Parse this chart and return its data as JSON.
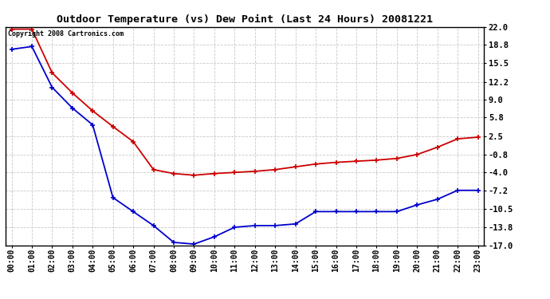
{
  "title": "Outdoor Temperature (vs) Dew Point (Last 24 Hours) 20081221",
  "copyright": "Copyright 2008 Cartronics.com",
  "x_labels": [
    "00:00",
    "01:00",
    "02:00",
    "03:00",
    "04:00",
    "05:00",
    "06:00",
    "07:00",
    "08:00",
    "09:00",
    "10:00",
    "11:00",
    "12:00",
    "13:00",
    "14:00",
    "15:00",
    "16:00",
    "17:00",
    "18:00",
    "19:00",
    "20:00",
    "21:00",
    "22:00",
    "23:00"
  ],
  "y_ticks": [
    22.0,
    18.8,
    15.5,
    12.2,
    9.0,
    5.8,
    2.5,
    -0.8,
    -4.0,
    -7.2,
    -10.5,
    -13.8,
    -17.0
  ],
  "ylim_min": -17.0,
  "ylim_max": 22.0,
  "temp_color": "#cc0000",
  "dew_color": "#0000cc",
  "bg_color": "#ffffff",
  "grid_color": "#bbbbbb",
  "temp_data": [
    21.6,
    21.6,
    13.8,
    10.2,
    7.0,
    4.2,
    1.5,
    -3.5,
    -4.2,
    -4.5,
    -4.2,
    -4.0,
    -3.8,
    -3.5,
    -3.0,
    -2.5,
    -2.2,
    -2.0,
    -1.8,
    -1.5,
    -0.8,
    0.5,
    2.0,
    2.3
  ],
  "dew_data": [
    18.0,
    18.5,
    11.2,
    7.5,
    4.5,
    -8.5,
    -11.0,
    -13.5,
    -16.5,
    -16.8,
    -15.5,
    -13.8,
    -13.5,
    -13.5,
    -13.2,
    -11.0,
    -11.0,
    -11.0,
    -11.0,
    -11.0,
    -9.8,
    -8.8,
    -7.2,
    -7.2
  ]
}
